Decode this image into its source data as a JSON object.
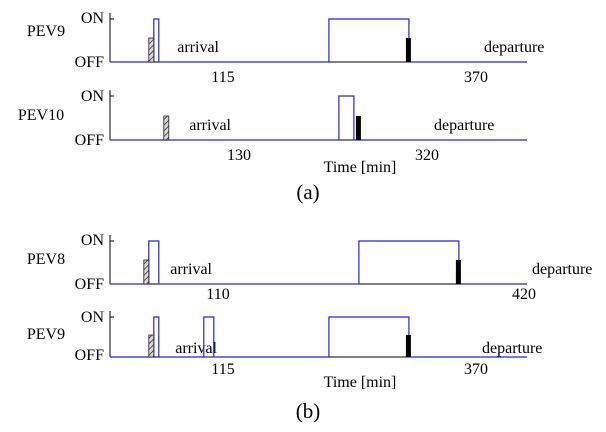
{
  "chart_data": [
    {
      "type": "line",
      "subplot": "(a)",
      "xlabel": "Time [min]",
      "state_labels": [
        "ON",
        "OFF"
      ],
      "series_color": "#2424e0",
      "panels": [
        {
          "ylabel": "PEV9",
          "arrival": {
            "time": 115,
            "label": "arrival",
            "tick": "115"
          },
          "departure": {
            "time": 370,
            "label": "departure",
            "tick": "370"
          },
          "on_intervals": [
            [
              115,
              120
            ],
            [
              290,
              370
            ]
          ]
        },
        {
          "ylabel": "PEV10",
          "arrival": {
            "time": 130,
            "label": "arrival",
            "tick": "130"
          },
          "departure": {
            "time": 320,
            "label": "departure",
            "tick": "320"
          },
          "on_intervals": [
            [
              300,
              315
            ]
          ]
        }
      ]
    },
    {
      "type": "line",
      "subplot": "(b)",
      "xlabel": "Time [min]",
      "state_labels": [
        "ON",
        "OFF"
      ],
      "series_color": "#2424e0",
      "panels": [
        {
          "ylabel": "PEV8",
          "arrival": {
            "time": 110,
            "label": "arrival",
            "tick": "110"
          },
          "departure": {
            "time": 420,
            "label": "departure",
            "tick": "420"
          },
          "on_intervals": [
            [
              110,
              120
            ],
            [
              320,
              420
            ]
          ]
        },
        {
          "ylabel": "PEV9",
          "arrival": {
            "time": 115,
            "label": "arrival",
            "tick": "115"
          },
          "departure": {
            "time": 370,
            "label": "departure",
            "tick": "370"
          },
          "on_intervals": [
            [
              115,
              120
            ],
            [
              165,
              175
            ],
            [
              290,
              370
            ]
          ]
        }
      ]
    }
  ]
}
